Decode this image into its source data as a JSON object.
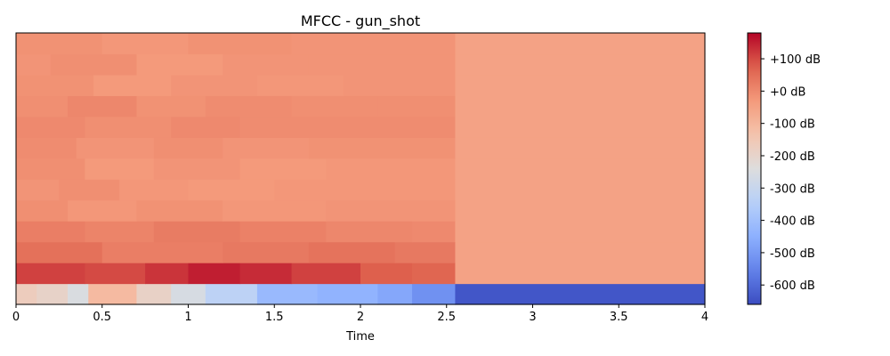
{
  "chart_data": {
    "type": "heatmap",
    "title": "MFCC - gun_shot",
    "xlabel": "Time",
    "ylabel": "",
    "xlim": [
      0,
      4
    ],
    "x_ticks": [
      {
        "value": 0,
        "label": "0"
      },
      {
        "value": 0.5,
        "label": "0.5"
      },
      {
        "value": 1,
        "label": "1"
      },
      {
        "value": 1.5,
        "label": "1.5"
      },
      {
        "value": 2,
        "label": "2"
      },
      {
        "value": 2.5,
        "label": "2.5"
      },
      {
        "value": 3,
        "label": "3"
      },
      {
        "value": 3.5,
        "label": "3.5"
      },
      {
        "value": 4,
        "label": "4"
      }
    ],
    "colorbar": {
      "colormap": "coolwarm",
      "vmin": -660,
      "vmax": 180,
      "ticks": [
        {
          "value": 100,
          "label": "+100 dB"
        },
        {
          "value": 0,
          "label": "+0 dB"
        },
        {
          "value": -100,
          "label": "-100 dB"
        },
        {
          "value": -200,
          "label": "-200 dB"
        },
        {
          "value": -300,
          "label": "-300 dB"
        },
        {
          "value": -400,
          "label": "-400 dB"
        },
        {
          "value": -500,
          "label": "-500 dB"
        },
        {
          "value": -600,
          "label": "-600 dB"
        }
      ]
    },
    "n_coefficients": 13,
    "signal_end_time": 2.56,
    "rows_bottom_to_top": [
      {
        "coef": 0,
        "segments": [
          [
            0,
            -170
          ],
          [
            0.12,
            -195
          ],
          [
            0.3,
            -250
          ],
          [
            0.42,
            -110
          ],
          [
            0.7,
            -190
          ],
          [
            0.9,
            -260
          ],
          [
            1.1,
            -330
          ],
          [
            1.4,
            -420
          ],
          [
            1.75,
            -440
          ],
          [
            2.1,
            -470
          ],
          [
            2.3,
            -520
          ],
          [
            2.55,
            -640
          ]
        ],
        "silence": -640
      },
      {
        "coef": 1,
        "segments": [
          [
            0,
            110
          ],
          [
            0.4,
            100
          ],
          [
            0.75,
            125
          ],
          [
            1.0,
            150
          ],
          [
            1.3,
            135
          ],
          [
            1.6,
            110
          ],
          [
            2.0,
            75
          ],
          [
            2.3,
            65
          ],
          [
            2.55,
            -50
          ]
        ],
        "silence": -50
      },
      {
        "coef": 2,
        "segments": [
          [
            0,
            45
          ],
          [
            0.5,
            20
          ],
          [
            1.2,
            30
          ],
          [
            1.7,
            40
          ],
          [
            2.2,
            30
          ],
          [
            2.55,
            -50
          ]
        ],
        "silence": -50
      },
      {
        "coef": 3,
        "segments": [
          [
            0,
            20
          ],
          [
            0.4,
            10
          ],
          [
            0.8,
            25
          ],
          [
            1.3,
            15
          ],
          [
            1.8,
            5
          ],
          [
            2.3,
            0
          ],
          [
            2.55,
            -50
          ]
        ],
        "silence": -50
      },
      {
        "coef": 4,
        "segments": [
          [
            0,
            -10
          ],
          [
            0.3,
            -25
          ],
          [
            0.7,
            -15
          ],
          [
            1.2,
            -25
          ],
          [
            1.8,
            -20
          ],
          [
            2.3,
            -20
          ],
          [
            2.55,
            -50
          ]
        ],
        "silence": -50
      },
      {
        "coef": 5,
        "segments": [
          [
            0,
            -20
          ],
          [
            0.25,
            -10
          ],
          [
            0.6,
            -25
          ],
          [
            1.0,
            -30
          ],
          [
            1.5,
            -25
          ],
          [
            2.0,
            -25
          ],
          [
            2.55,
            -50
          ]
        ],
        "silence": -50
      },
      {
        "coef": 6,
        "segments": [
          [
            0,
            -10
          ],
          [
            0.4,
            -30
          ],
          [
            0.8,
            -20
          ],
          [
            1.3,
            -30
          ],
          [
            1.8,
            -25
          ],
          [
            2.55,
            -50
          ]
        ],
        "silence": -50
      },
      {
        "coef": 7,
        "segments": [
          [
            0,
            -5
          ],
          [
            0.35,
            -20
          ],
          [
            0.8,
            -10
          ],
          [
            1.2,
            -20
          ],
          [
            1.7,
            -15
          ],
          [
            2.2,
            -15
          ],
          [
            2.55,
            -50
          ]
        ],
        "silence": -50
      },
      {
        "coef": 8,
        "segments": [
          [
            0,
            0
          ],
          [
            0.4,
            -10
          ],
          [
            0.9,
            0
          ],
          [
            1.3,
            -5
          ],
          [
            1.9,
            -5
          ],
          [
            2.55,
            -50
          ]
        ],
        "silence": -50
      },
      {
        "coef": 9,
        "segments": [
          [
            0,
            -10
          ],
          [
            0.3,
            5
          ],
          [
            0.7,
            -15
          ],
          [
            1.1,
            -5
          ],
          [
            1.6,
            -10
          ],
          [
            2.1,
            -10
          ],
          [
            2.55,
            -50
          ]
        ],
        "silence": -50
      },
      {
        "coef": 10,
        "segments": [
          [
            0,
            -15
          ],
          [
            0.45,
            -30
          ],
          [
            0.9,
            -20
          ],
          [
            1.4,
            -25
          ],
          [
            1.9,
            -20
          ],
          [
            2.55,
            -50
          ]
        ],
        "silence": -50
      },
      {
        "coef": 11,
        "segments": [
          [
            0,
            -20
          ],
          [
            0.2,
            -10
          ],
          [
            0.7,
            -30
          ],
          [
            1.2,
            -20
          ],
          [
            1.7,
            -20
          ],
          [
            2.55,
            -50
          ]
        ],
        "silence": -50
      },
      {
        "coef": 12,
        "segments": [
          [
            0,
            -15
          ],
          [
            0.5,
            -25
          ],
          [
            1.0,
            -15
          ],
          [
            1.6,
            -20
          ],
          [
            2.1,
            -20
          ],
          [
            2.55,
            -50
          ]
        ],
        "silence": -50
      }
    ]
  }
}
